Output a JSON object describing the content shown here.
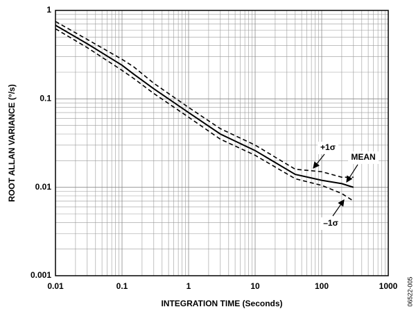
{
  "chart_data": {
    "type": "line",
    "x_label": "INTEGRATION TIME (Seconds)",
    "y_label": "ROOT ALLAN VARIANCE (°/s)",
    "x": [
      0.01,
      0.03,
      0.1,
      0.15,
      0.3,
      1,
      3,
      10,
      40,
      100,
      200,
      300
    ],
    "series": [
      {
        "name": "+1σ",
        "color": "#000000",
        "dash": true,
        "values": [
          0.75,
          0.47,
          0.28,
          0.23,
          0.15,
          0.08,
          0.046,
          0.03,
          0.016,
          0.015,
          0.013,
          0.013
        ]
      },
      {
        "name": "MEAN",
        "color": "#000000",
        "dash": false,
        "values": [
          0.68,
          0.42,
          0.24,
          0.19,
          0.13,
          0.07,
          0.04,
          0.026,
          0.014,
          0.012,
          0.011,
          0.01
        ]
      },
      {
        "name": "–1σ",
        "color": "#000000",
        "dash": true,
        "values": [
          0.62,
          0.38,
          0.21,
          0.17,
          0.115,
          0.062,
          0.035,
          0.023,
          0.0125,
          0.0105,
          0.0085,
          0.007
        ]
      }
    ],
    "xlim": [
      0.01,
      1000
    ],
    "ylim": [
      0.001,
      1
    ],
    "xticks": [
      0.01,
      0.1,
      1,
      10,
      100,
      1000
    ],
    "yticks": [
      0.001,
      0.01,
      0.1,
      1
    ],
    "log_x": true,
    "log_y": true,
    "grid": true,
    "minor_grid": true,
    "figure_id": "06522-005"
  }
}
